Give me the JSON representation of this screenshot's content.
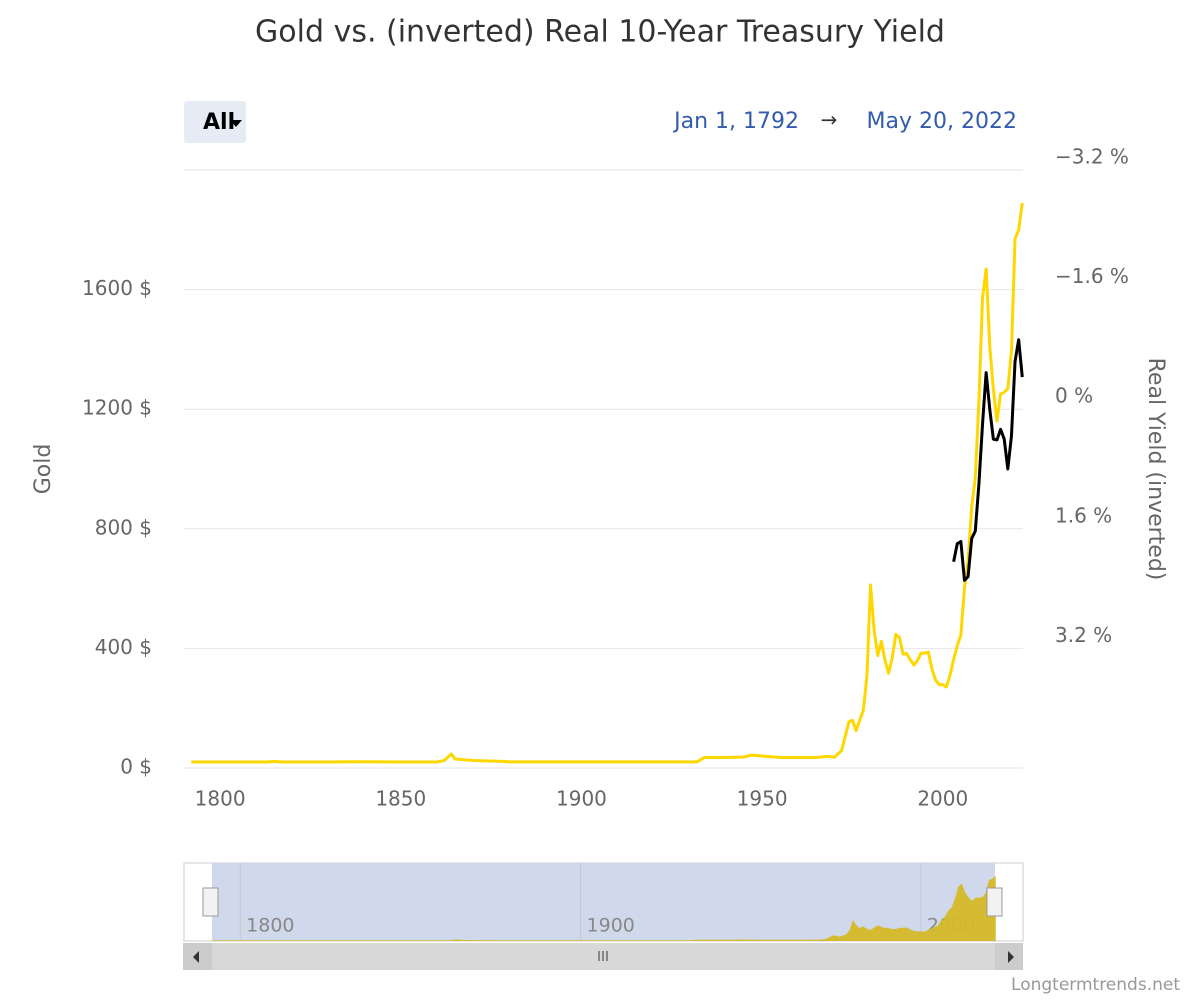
{
  "chart_data": {
    "type": "line",
    "title": "Gold vs. (inverted) Real 10-Year Treasury Yield",
    "range_button": "All",
    "range_start": "Jan 1, 1792",
    "range_arrow": "→",
    "range_end": "May 20, 2022",
    "ylabel": "Gold",
    "y2label": "Real Yield (inverted)",
    "credit": "Longtermtrends.net",
    "xlim": [
      1790,
      2022.2
    ],
    "xticks": [
      1800,
      1850,
      1900,
      1950,
      2000
    ],
    "ylim": [
      0,
      2000
    ],
    "yticks": [
      {
        "value": 0,
        "label": "0 $"
      },
      {
        "value": 400,
        "label": "400 $"
      },
      {
        "value": 800,
        "label": "800 $"
      },
      {
        "value": 1200,
        "label": "1200 $"
      },
      {
        "value": 1600,
        "label": "1600 $"
      }
    ],
    "y2lim": [
      -3.2,
      4.8
    ],
    "y2reversed": true,
    "y2ticks": [
      {
        "value": -3.2,
        "label": "−3.2 %"
      },
      {
        "value": -1.6,
        "label": "−1.6 %"
      },
      {
        "value": 0,
        "label": "0 %"
      },
      {
        "value": 1.6,
        "label": "1.6 %"
      },
      {
        "value": 3.2,
        "label": "3.2 %"
      }
    ],
    "grid": true,
    "series": [
      {
        "color": "#ffd700",
        "axis": "y",
        "x": [
          1792,
          1800,
          1813,
          1815,
          1817,
          1830,
          1837,
          1850,
          1860,
          1862,
          1864,
          1865,
          1870,
          1878,
          1880,
          1900,
          1932,
          1934,
          1940,
          1945,
          1947,
          1950,
          1955,
          1960,
          1965,
          1968,
          1970,
          1972,
          1974,
          1975,
          1976,
          1978,
          1979,
          1980,
          1981,
          1982,
          1983,
          1984,
          1985,
          1986,
          1987,
          1988,
          1989,
          1990,
          1991,
          1992,
          1993,
          1994,
          1995,
          1996,
          1997,
          1998,
          1999,
          2000,
          2001,
          2002,
          2003,
          2004,
          2005,
          2006,
          2007,
          2008,
          2009,
          2010,
          2011,
          2012,
          2013,
          2014,
          2015,
          2016,
          2017,
          2018,
          2019,
          2020,
          2021,
          2022
        ],
        "values": [
          20,
          20,
          20,
          22,
          20,
          20,
          21,
          20,
          20,
          25,
          47,
          30,
          25,
          22,
          20.67,
          20.67,
          20.67,
          35,
          35,
          37,
          43,
          40,
          35,
          35,
          35,
          39,
          36,
          58,
          154,
          160,
          125,
          193,
          306,
          612,
          460,
          376,
          424,
          361,
          317,
          368,
          447,
          437,
          381,
          383,
          362,
          344,
          360,
          384,
          384,
          388,
          331,
          294,
          279,
          279,
          271,
          310,
          363,
          409,
          444,
          603,
          695,
          872,
          972,
          1225,
          1572,
          1669,
          1411,
          1266,
          1160,
          1251,
          1257,
          1268,
          1393,
          1770,
          1799,
          1890
        ]
      },
      {
        "color": "#000000",
        "axis": "y2",
        "x": [
          2003,
          2004,
          2005,
          2006,
          2007,
          2008,
          2009,
          2010,
          2011,
          2012,
          2013,
          2014,
          2015,
          2016,
          2017,
          2018,
          2019,
          2020,
          2021,
          2022
        ],
        "values": [
          2.04,
          1.8,
          1.77,
          2.29,
          2.24,
          1.73,
          1.63,
          1.0,
          0.2,
          -0.49,
          0,
          0.4,
          0.41,
          0.27,
          0.4,
          0.8,
          0.36,
          -0.64,
          -0.93,
          -0.43
        ]
      }
    ],
    "navigator": {
      "xlim": [
        1783.5,
        2030
      ],
      "xticks": [
        1800,
        1900,
        2000
      ]
    }
  }
}
